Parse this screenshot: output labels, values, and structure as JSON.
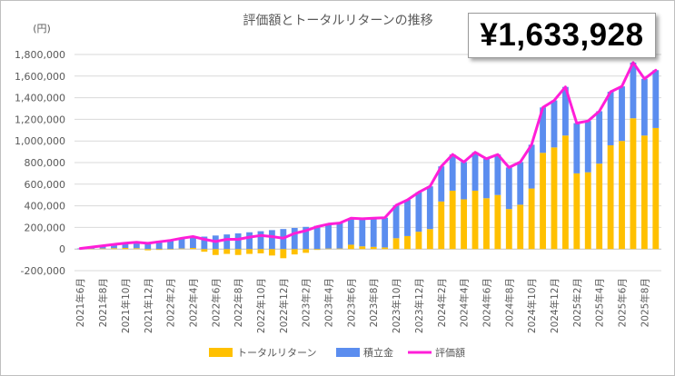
{
  "total_value": "¥1,633,928",
  "colors": {
    "return": "#ffc000",
    "contribution": "#5b8def",
    "valuation": "#ff1ed8",
    "grid": "#d9d9d9",
    "text": "#595959",
    "negative": "#ff0000"
  },
  "chart_data": {
    "type": "bar",
    "title": "評価額とトータルリターンの推移",
    "ylabel": "(円)",
    "xlabel": "",
    "ylim": [
      -200000,
      1800000
    ],
    "yticks": [
      -200000,
      0,
      200000,
      400000,
      600000,
      800000,
      1000000,
      1200000,
      1400000,
      1600000,
      1800000
    ],
    "ytick_labels": [
      "-200,000",
      "0",
      "200,000",
      "400,000",
      "600,000",
      "800,000",
      "1,000,000",
      "1,200,000",
      "1,400,000",
      "1,600,000",
      "1,800,000"
    ],
    "categories": [
      "2021年6月",
      "2021年7月",
      "2021年8月",
      "2021年9月",
      "2021年10月",
      "2021年11月",
      "2021年12月",
      "2022年1月",
      "2022年2月",
      "2022年3月",
      "2022年4月",
      "2022年5月",
      "2022年6月",
      "2022年7月",
      "2022年8月",
      "2022年9月",
      "2022年10月",
      "2022年11月",
      "2022年12月",
      "2023年1月",
      "2023年2月",
      "2023年3月",
      "2023年4月",
      "2023年5月",
      "2023年6月",
      "2023年7月",
      "2023年8月",
      "2023年9月",
      "2023年10月",
      "2023年11月",
      "2023年12月",
      "2024年1月",
      "2024年2月",
      "2024年3月",
      "2024年4月",
      "2024年5月",
      "2024年6月",
      "2024年7月",
      "2024年8月",
      "2024年9月",
      "2024年10月",
      "2024年11月",
      "2024年12月",
      "2025年1月",
      "2025年2月",
      "2025年3月",
      "2025年4月",
      "2025年5月",
      "2025年6月",
      "2025年7月",
      "2025年8月",
      "2025年9月"
    ],
    "tick_labels": [
      "2021年6月",
      "2021年8月",
      "2021年10月",
      "2021年12月",
      "2022年2月",
      "2022年4月",
      "2022年6月",
      "2022年8月",
      "2022年10月",
      "2022年12月",
      "2023年2月",
      "2023年4月",
      "2023年6月",
      "2023年8月",
      "2023年10月",
      "2023年12月",
      "2024年2月",
      "2024年4月",
      "2024年6月",
      "2024年8月",
      "2024年10月",
      "2024年12月",
      "2025年2月",
      "2025年4月",
      "2025年6月",
      "2025年8月"
    ],
    "series": [
      {
        "name": "トータルリターン",
        "type": "bar",
        "color": "#ffc000",
        "values": [
          0,
          3000,
          5000,
          8000,
          10000,
          8000,
          -12000,
          -8000,
          -5000,
          5000,
          10000,
          -25000,
          -55000,
          -45000,
          -55000,
          -45000,
          -40000,
          -60000,
          -85000,
          -50000,
          -35000,
          -8000,
          5000,
          5000,
          40000,
          25000,
          20000,
          15000,
          100000,
          120000,
          160000,
          185000,
          440000,
          540000,
          460000,
          540000,
          470000,
          500000,
          370000,
          410000,
          560000,
          890000,
          940000,
          1050000,
          700000,
          710000,
          790000,
          960000,
          1000000,
          1210000,
          1050000,
          1120000
        ]
      },
      {
        "name": "積立金",
        "type": "bar",
        "color": "#5b8def",
        "values": [
          5000,
          15000,
          25000,
          35000,
          45000,
          55000,
          65000,
          75000,
          85000,
          95000,
          105000,
          115000,
          125000,
          135000,
          145000,
          155000,
          165000,
          175000,
          185000,
          195000,
          205000,
          215000,
          225000,
          235000,
          245000,
          255000,
          265000,
          275000,
          305000,
          335000,
          365000,
          395000,
          325000,
          335000,
          345000,
          355000,
          365000,
          375000,
          385000,
          395000,
          405000,
          420000,
          435000,
          450000,
          465000,
          475000,
          485000,
          495000,
          505000,
          515000,
          525000,
          535000
        ]
      },
      {
        "name": "評価額",
        "type": "line",
        "color": "#ff1ed8",
        "values": [
          5000,
          18000,
          30000,
          43000,
          55000,
          63000,
          53000,
          67000,
          80000,
          100000,
          115000,
          90000,
          70000,
          90000,
          90000,
          110000,
          125000,
          115000,
          100000,
          145000,
          170000,
          207000,
          230000,
          240000,
          285000,
          280000,
          285000,
          290000,
          405000,
          455000,
          525000,
          580000,
          765000,
          875000,
          805000,
          895000,
          835000,
          875000,
          755000,
          805000,
          965000,
          1310000,
          1375000,
          1500000,
          1165000,
          1185000,
          1275000,
          1455000,
          1505000,
          1725000,
          1575000,
          1655000
        ]
      }
    ],
    "legend": {
      "position": "bottom",
      "entries": [
        "トータルリターン",
        "積立金",
        "評価額"
      ]
    }
  }
}
